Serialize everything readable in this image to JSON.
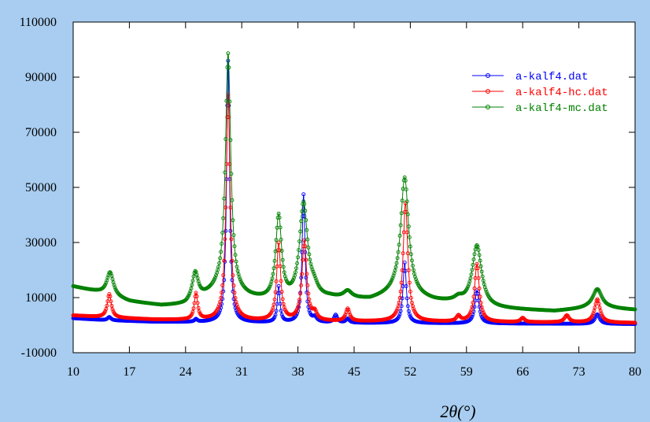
{
  "chart_data": {
    "type": "scatter",
    "xlabel": "2θ(°)",
    "ylabel": "",
    "xlim": [
      10,
      80
    ],
    "ylim": [
      -10000,
      110000
    ],
    "x_ticks": [
      "10",
      "17",
      "24",
      "31",
      "38",
      "45",
      "52",
      "59",
      "66",
      "73",
      "80"
    ],
    "y_ticks": [
      "-10000",
      "10000",
      "30000",
      "50000",
      "70000",
      "90000",
      "110000"
    ],
    "legend_position": "top-right",
    "background_color": "#a8cdf0",
    "plot_background": "#ffffff",
    "series": [
      {
        "name": "a-kalf4.dat",
        "color": "#0000ff",
        "baseline": [
          [
            10,
            2500
          ],
          [
            14,
            1800
          ],
          [
            20,
            1200
          ],
          [
            30,
            900
          ],
          [
            40,
            800
          ],
          [
            50,
            700
          ],
          [
            60,
            600
          ],
          [
            70,
            500
          ],
          [
            80,
            400
          ]
        ],
        "peaks": [
          {
            "x": 14.5,
            "h": 1200,
            "w": 0.25
          },
          {
            "x": 25.3,
            "h": 1000,
            "w": 0.2
          },
          {
            "x": 29.3,
            "h": 95000,
            "w": 0.22
          },
          {
            "x": 35.6,
            "h": 13000,
            "w": 0.2
          },
          {
            "x": 38.7,
            "h": 46500,
            "w": 0.22
          },
          {
            "x": 40.1,
            "h": 1500,
            "w": 0.3
          },
          {
            "x": 42.7,
            "h": 2800,
            "w": 0.25
          },
          {
            "x": 44.2,
            "h": 1500,
            "w": 0.25
          },
          {
            "x": 51.3,
            "h": 22000,
            "w": 0.25
          },
          {
            "x": 60.3,
            "h": 12000,
            "w": 0.3
          },
          {
            "x": 75.3,
            "h": 3500,
            "w": 0.35
          }
        ]
      },
      {
        "name": "a-kalf4-hc.dat",
        "color": "#ff0000",
        "baseline": [
          [
            10,
            3500
          ],
          [
            14,
            2800
          ],
          [
            20,
            2000
          ],
          [
            30,
            1500
          ],
          [
            40,
            1300
          ],
          [
            50,
            1200
          ],
          [
            60,
            1100
          ],
          [
            70,
            1000
          ],
          [
            80,
            800
          ]
        ],
        "peaks": [
          {
            "x": 14.5,
            "h": 8500,
            "w": 0.3
          },
          {
            "x": 25.3,
            "h": 9500,
            "w": 0.25
          },
          {
            "x": 29.3,
            "h": 82000,
            "w": 0.3
          },
          {
            "x": 35.6,
            "h": 28000,
            "w": 0.3
          },
          {
            "x": 38.8,
            "h": 29000,
            "w": 0.35
          },
          {
            "x": 40.1,
            "h": 2500,
            "w": 0.3
          },
          {
            "x": 44.2,
            "h": 4500,
            "w": 0.3
          },
          {
            "x": 51.4,
            "h": 43000,
            "w": 0.35
          },
          {
            "x": 58.0,
            "h": 2000,
            "w": 0.3
          },
          {
            "x": 60.3,
            "h": 21000,
            "w": 0.35
          },
          {
            "x": 66.0,
            "h": 1500,
            "w": 0.3
          },
          {
            "x": 71.5,
            "h": 2500,
            "w": 0.35
          },
          {
            "x": 75.3,
            "h": 8500,
            "w": 0.4
          }
        ]
      },
      {
        "name": "a-kalf4-mc.dat",
        "color": "#008000",
        "baseline": [
          [
            10,
            14000
          ],
          [
            13,
            12000
          ],
          [
            17,
            8500
          ],
          [
            21,
            7000
          ],
          [
            24,
            7200
          ],
          [
            28,
            12000
          ],
          [
            32,
            9500
          ],
          [
            36,
            7500
          ],
          [
            42,
            9500
          ],
          [
            47,
            9000
          ],
          [
            50,
            11000
          ],
          [
            55,
            8500
          ],
          [
            57,
            8000
          ],
          [
            62,
            6000
          ],
          [
            66,
            5500
          ],
          [
            70,
            5000
          ],
          [
            74,
            6000
          ],
          [
            77,
            6000
          ],
          [
            80,
            5500
          ]
        ],
        "peaks": [
          {
            "x": 14.6,
            "h": 8500,
            "w": 0.5
          },
          {
            "x": 25.2,
            "h": 10000,
            "w": 0.45
          },
          {
            "x": 29.3,
            "h": 87000,
            "w": 0.4
          },
          {
            "x": 35.6,
            "h": 31000,
            "w": 0.45
          },
          {
            "x": 38.7,
            "h": 35000,
            "w": 0.6
          },
          {
            "x": 40.0,
            "h": 3000,
            "w": 0.6
          },
          {
            "x": 44.2,
            "h": 2500,
            "w": 0.6
          },
          {
            "x": 51.3,
            "h": 43000,
            "w": 0.6
          },
          {
            "x": 58.0,
            "h": 1500,
            "w": 0.6
          },
          {
            "x": 60.3,
            "h": 22000,
            "w": 0.7
          },
          {
            "x": 75.3,
            "h": 7000,
            "w": 0.7
          }
        ]
      }
    ]
  }
}
